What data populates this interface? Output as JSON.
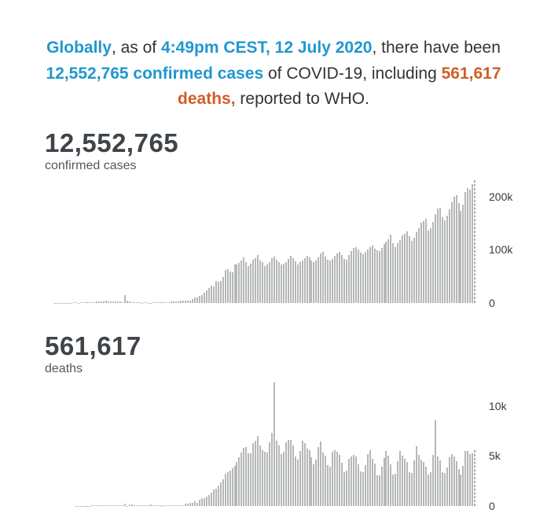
{
  "colors": {
    "accent_blue": "#2097cf",
    "accent_orange": "#cf5f28",
    "bar_gray": "#b5b7b8",
    "stat_text": "#3e444a",
    "body_text": "#333333"
  },
  "header": {
    "segments": [
      {
        "text": "Globally",
        "style": "blue"
      },
      {
        "text": ", as of ",
        "style": "plain"
      },
      {
        "text": "4:49pm CEST, 12 July 2020",
        "style": "blue"
      },
      {
        "text": ", there have been ",
        "style": "plain"
      },
      {
        "text": "12,552,765 confirmed cases",
        "style": "blue"
      },
      {
        "text": " of COVID-19, including ",
        "style": "plain"
      },
      {
        "text": "561,617 deaths,",
        "style": "orange"
      },
      {
        "text": " reported to WHO.",
        "style": "plain"
      }
    ]
  },
  "stats": [
    {
      "value": "12,552,765",
      "label": "confirmed cases"
    },
    {
      "value": "561,617",
      "label": "deaths"
    }
  ],
  "chart_data": [
    {
      "type": "bar",
      "title": "Daily new confirmed cases (no axis titles shown)",
      "xlabel": "",
      "ylabel": "",
      "ylim": [
        0,
        232000
      ],
      "grid": false,
      "legend": "none",
      "yticks": [
        {
          "label": "200k",
          "value": 200000
        },
        {
          "label": "100k",
          "value": 100000
        },
        {
          "label": "0",
          "value": 0
        }
      ],
      "incomplete_last_bar_dashed": true,
      "values": [
        100,
        100,
        100,
        150,
        150,
        150,
        200,
        250,
        300,
        450,
        650,
        800,
        950,
        700,
        800,
        900,
        1800,
        1500,
        1750,
        2000,
        2100,
        2600,
        2800,
        2750,
        3200,
        3900,
        3700,
        3200,
        3400,
        2700,
        3000,
        2600,
        2000,
        15150,
        4000,
        2600,
        2150,
        2000,
        1900,
        1750,
        600,
        900,
        1000,
        750,
        600,
        800,
        900,
        1250,
        1400,
        1800,
        1750,
        1900,
        2200,
        2500,
        2350,
        2750,
        3700,
        3900,
        4050,
        4500,
        4600,
        5000,
        7500,
        9750,
        10900,
        13900,
        15100,
        19800,
        24300,
        28700,
        32800,
        31000,
        40800,
        39800,
        41500,
        49200,
        61500,
        63200,
        58400,
        57600,
        72800,
        72700,
        76000,
        79400,
        86000,
        77200,
        68800,
        74000,
        81600,
        84700,
        89700,
        80100,
        76500,
        70000,
        71800,
        76600,
        84800,
        87800,
        81500,
        76900,
        72400,
        74200,
        77600,
        83000,
        88200,
        84900,
        78800,
        72200,
        76700,
        79500,
        84000,
        88900,
        86100,
        79600,
        77100,
        79300,
        85500,
        92400,
        95800,
        87700,
        81000,
        79800,
        82600,
        88600,
        93400,
        96400,
        90000,
        83500,
        82000,
        90200,
        97100,
        102900,
        104500,
        99800,
        94000,
        91600,
        95400,
        100200,
        104700,
        107900,
        102400,
        99000,
        97200,
        103600,
        110400,
        115600,
        119500,
        128600,
        111800,
        104900,
        112100,
        118300,
        126400,
        130600,
        134900,
        125800,
        116500,
        122900,
        133300,
        140200,
        150600,
        153400,
        158700,
        135900,
        141100,
        152900,
        167200,
        177000,
        179300,
        161000,
        155400,
        163900,
        176100,
        189100,
        199700,
        201800,
        188200,
        172500,
        184500,
        207900,
        216000,
        212400,
        223500,
        230400
      ]
    },
    {
      "type": "bar",
      "title": "Daily new deaths (no axis titles shown)",
      "xlabel": "",
      "ylabel": "",
      "ylim": [
        0,
        12400
      ],
      "grid": false,
      "legend": "none",
      "yticks": [
        {
          "label": "10k",
          "value": 10000
        },
        {
          "label": "5k",
          "value": 5000
        },
        {
          "label": "0",
          "value": 0
        }
      ],
      "incomplete_last_bar_dashed": true,
      "values": [
        0,
        0,
        0,
        0,
        0,
        0,
        0,
        1,
        1,
        2,
        3,
        4,
        8,
        8,
        15,
        24,
        26,
        26,
        38,
        43,
        46,
        45,
        45,
        57,
        64,
        66,
        72,
        73,
        86,
        89,
        97,
        108,
        97,
        254,
        13,
        143,
        142,
        105,
        98,
        115,
        118,
        112,
        109,
        97,
        150,
        71,
        52,
        44,
        57,
        35,
        54,
        50,
        57,
        69,
        80,
        73,
        98,
        102,
        98,
        200,
        271,
        290,
        337,
        435,
        343,
        629,
        796,
        780,
        961,
        1094,
        1365,
        1614,
        1690,
        2014,
        2319,
        2684,
        3250,
        3385,
        3506,
        3766,
        4015,
        4407,
        4906,
        5302,
        5810,
        5892,
        5229,
        5232,
        6244,
        6492,
        6963,
        6060,
        5565,
        5400,
        5325,
        6340,
        7300,
        12310,
        6480,
        6080,
        5200,
        5425,
        6320,
        6620,
        6590,
        6010,
        4970,
        4620,
        5490,
        6550,
        6260,
        5740,
        5580,
        4850,
        4170,
        4623,
        5900,
        6460,
        5370,
        5050,
        4100,
        3900,
        5430,
        5600,
        5400,
        5140,
        4320,
        3400,
        3560,
        4700,
        4930,
        5100,
        4980,
        4150,
        3450,
        3390,
        4100,
        5200,
        5580,
        4680,
        4200,
        3100,
        3040,
        3960,
        4750,
        5470,
        5040,
        4170,
        3160,
        3190,
        4480,
        5490,
        5060,
        4680,
        4380,
        3360,
        3300,
        4560,
        6000,
        5100,
        4670,
        4380,
        3930,
        3160,
        3400,
        5120,
        8580,
        4930,
        4580,
        3340,
        3260,
        3870,
        4850,
        5160,
        4930,
        4440,
        3660,
        3120,
        4010,
        5460,
        5510,
        5220,
        5290,
        5600
      ]
    }
  ]
}
